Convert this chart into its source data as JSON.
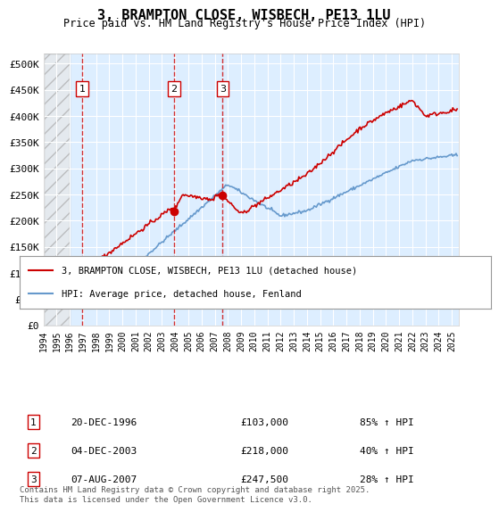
{
  "title": "3, BRAMPTON CLOSE, WISBECH, PE13 1LU",
  "subtitle": "Price paid vs. HM Land Registry's House Price Index (HPI)",
  "ylabel": "",
  "ylim": [
    0,
    520000
  ],
  "yticks": [
    0,
    50000,
    100000,
    150000,
    200000,
    250000,
    300000,
    350000,
    400000,
    450000,
    500000
  ],
  "ytick_labels": [
    "£0",
    "£50K",
    "£100K",
    "£150K",
    "£200K",
    "£250K",
    "£300K",
    "£350K",
    "£400K",
    "£450K",
    "£500K"
  ],
  "xlim_start": 1994.0,
  "xlim_end": 2025.5,
  "xticks": [
    1994,
    1995,
    1996,
    1997,
    1998,
    1999,
    2000,
    2001,
    2002,
    2003,
    2004,
    2005,
    2006,
    2007,
    2008,
    2009,
    2010,
    2011,
    2012,
    2013,
    2014,
    2015,
    2016,
    2017,
    2018,
    2019,
    2020,
    2021,
    2022,
    2023,
    2024,
    2025
  ],
  "background_color": "#ffffff",
  "plot_bg_color": "#ddeeff",
  "grid_color": "#ffffff",
  "hatch_color": "#cccccc",
  "red_line_color": "#cc0000",
  "blue_line_color": "#6699cc",
  "sale_marker_color": "#cc0000",
  "sale_vline_color": "#cc0000",
  "legend_label_red": "3, BRAMPTON CLOSE, WISBECH, PE13 1LU (detached house)",
  "legend_label_blue": "HPI: Average price, detached house, Fenland",
  "sales": [
    {
      "num": 1,
      "date_x": 1996.96,
      "price": 103000,
      "label": "20-DEC-1996",
      "price_label": "£103,000",
      "hpi_label": "85% ↑ HPI"
    },
    {
      "num": 2,
      "date_x": 2003.92,
      "price": 218000,
      "label": "04-DEC-2003",
      "price_label": "£218,000",
      "hpi_label": "40% ↑ HPI"
    },
    {
      "num": 3,
      "date_x": 2007.6,
      "price": 247500,
      "label": "07-AUG-2007",
      "price_label": "£247,500",
      "hpi_label": "28% ↑ HPI"
    }
  ],
  "footer_text": "Contains HM Land Registry data © Crown copyright and database right 2025.\nThis data is licensed under the Open Government Licence v3.0.",
  "hatch_end_x": 1996.0
}
